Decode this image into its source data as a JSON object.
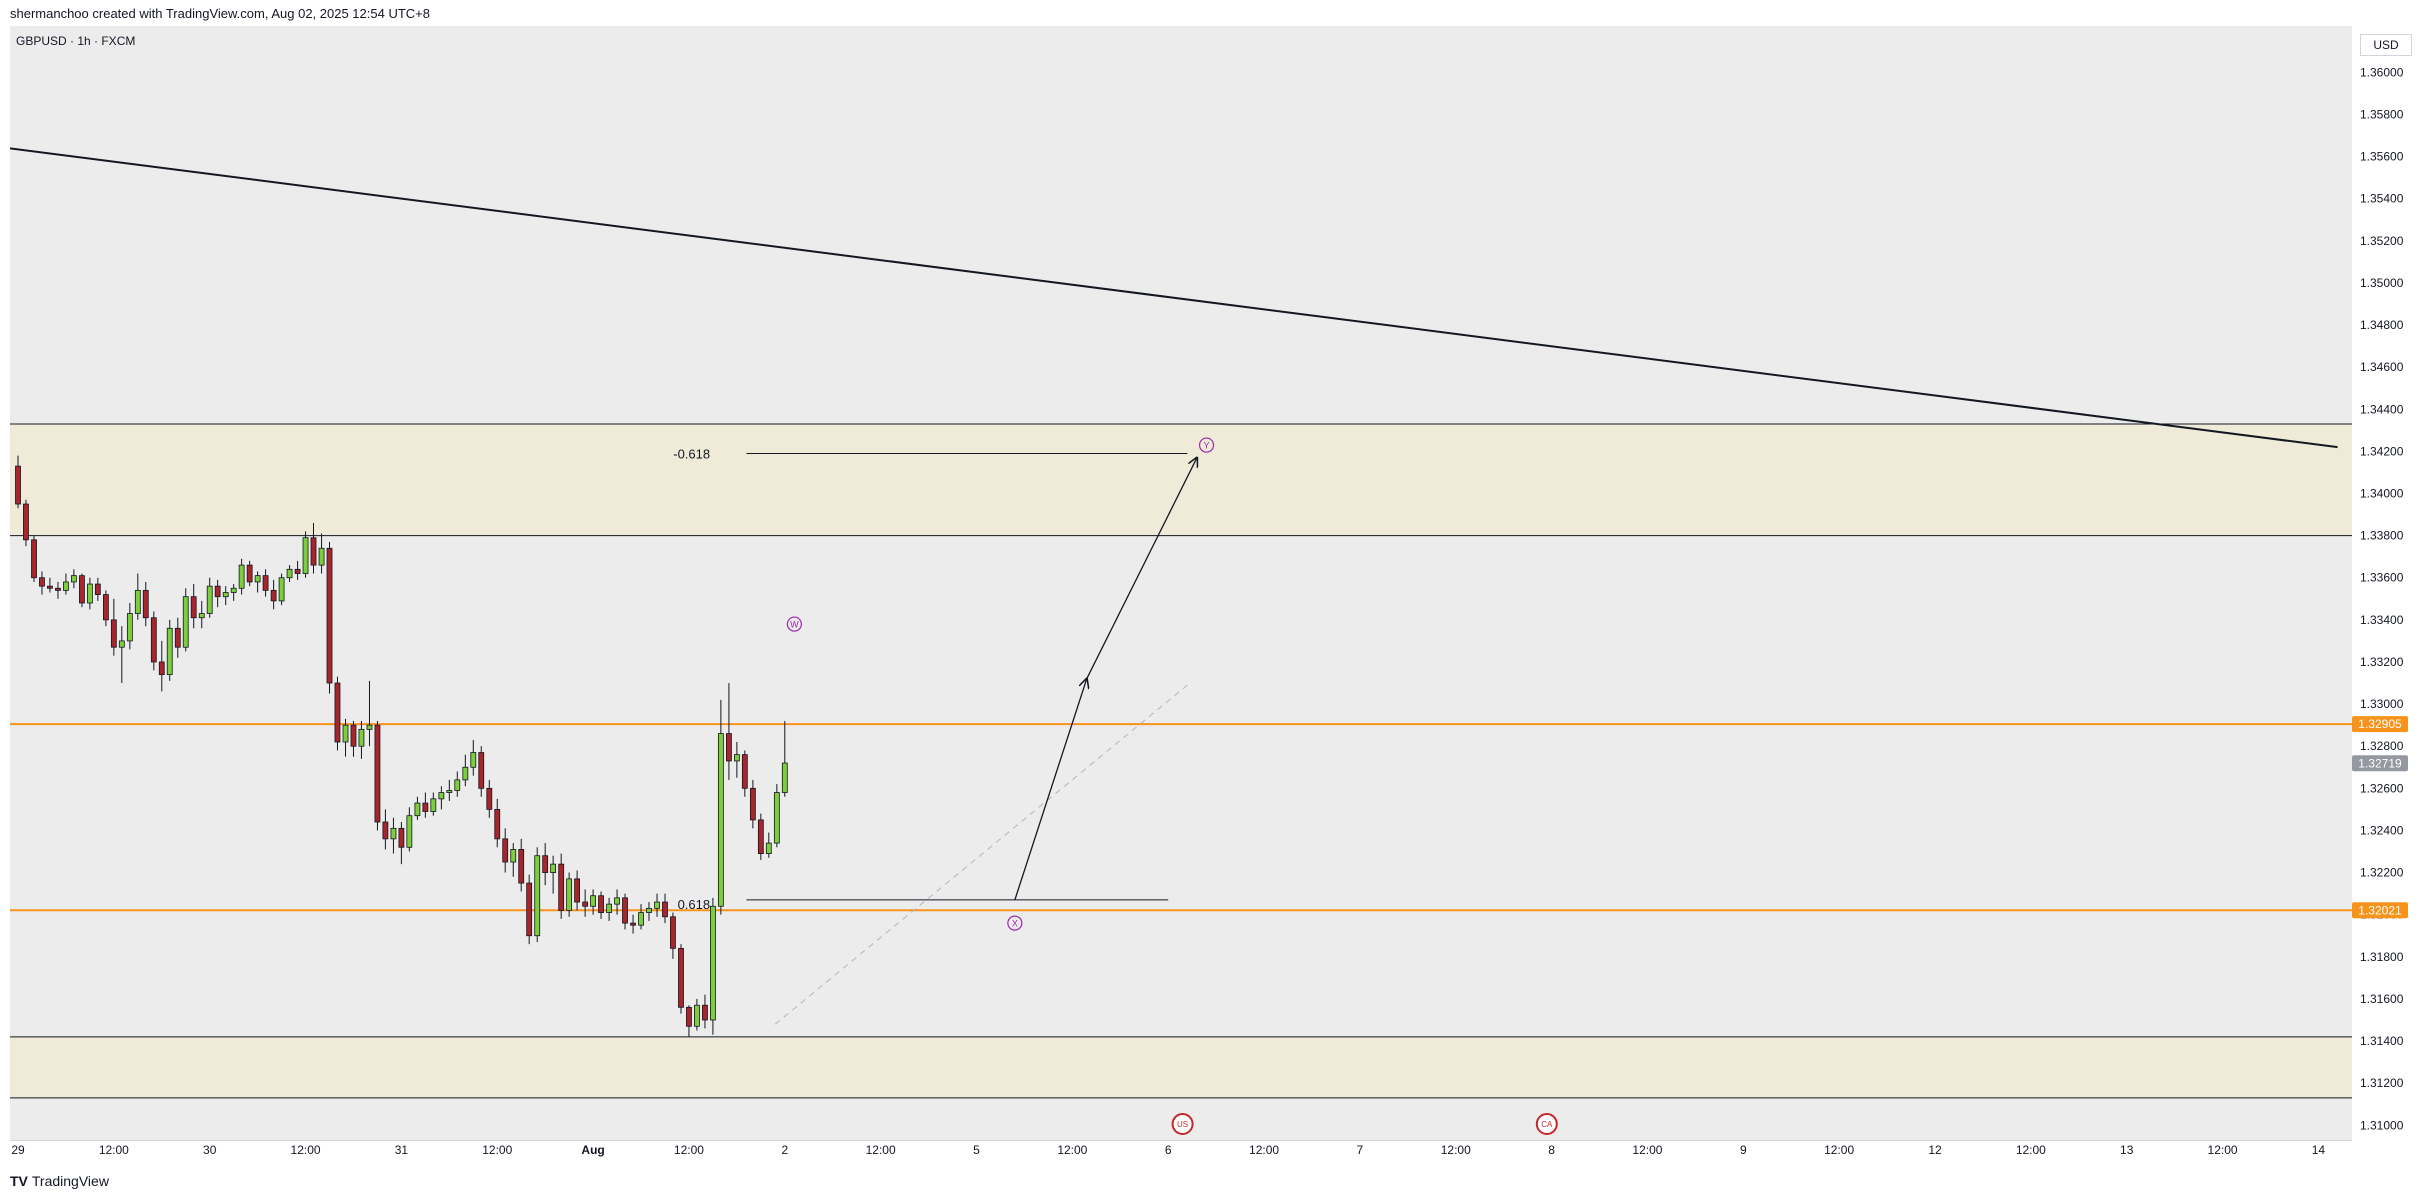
{
  "header": {
    "text": "shermanchoo created with TradingView.com, Aug 02, 2025 12:54 UTC+8"
  },
  "symbol": "GBPUSD · 1h · FXCM",
  "currency": "USD",
  "brand": {
    "logo": "TV",
    "name": "TradingView"
  },
  "colors": {
    "plot_bg": "#ececec",
    "zone": "#efebd8",
    "up": "#7ccf3a",
    "down": "#a8252b",
    "orange": "#f7931a",
    "purple": "#9c27b0",
    "current_price_bg": "#9598a1"
  },
  "chart_data": {
    "type": "candlestick",
    "title": "",
    "xlabel": "",
    "ylabel": "",
    "ylim": [
      1.3093,
      1.3622
    ],
    "price_ticks": [
      "1.36000",
      "1.35800",
      "1.35600",
      "1.35400",
      "1.35200",
      "1.35000",
      "1.34800",
      "1.34600",
      "1.34400",
      "1.34200",
      "1.34000",
      "1.33800",
      "1.33600",
      "1.33400",
      "1.33200",
      "1.33000",
      "1.32800",
      "1.32600",
      "1.32400",
      "1.32200",
      "1.32000",
      "1.31800",
      "1.31600",
      "1.31400",
      "1.31200",
      "1.31000"
    ],
    "time_ticks": [
      "29",
      "12:00",
      "30",
      "12:00",
      "31",
      "12:00",
      "Aug",
      "12:00",
      "2",
      "12:00",
      "5",
      "12:00",
      "6",
      "12:00",
      "7",
      "12:00",
      "8",
      "12:00",
      "9",
      "12:00",
      "12",
      "12:00",
      "13",
      "12:00",
      "14"
    ],
    "price_labels": [
      {
        "value": "1.32905",
        "price": 1.32905,
        "kind": "orange"
      },
      {
        "value": "1.32719",
        "price": 1.32719,
        "kind": "current"
      },
      {
        "value": "1.32021",
        "price": 1.32021,
        "kind": "orange"
      }
    ],
    "zones": [
      {
        "top": 1.3433,
        "bottom": 1.338
      },
      {
        "top": 1.3142,
        "bottom": 1.3113
      }
    ],
    "horizontal_levels": [
      1.32905,
      1.32021
    ],
    "trendline": {
      "from": {
        "t": -0.1,
        "p": 1.3564
      },
      "to": {
        "t": 24.2,
        "p": 1.3422
      }
    },
    "fib_labels": [
      {
        "text": "-0.618",
        "t": 7.2,
        "p": 1.3419
      },
      {
        "text": "0.618",
        "t": 7.2,
        "p": 1.3205
      }
    ],
    "fib_lines": [
      {
        "t0": 7.6,
        "t1": 12.2,
        "p": 1.3419
      },
      {
        "t0": 7.6,
        "t1": 12.0,
        "p": 1.3207
      }
    ],
    "projection_arrows": [
      {
        "from": {
          "t": 10.4,
          "p": 1.3207
        },
        "to": {
          "t": 11.15,
          "p": 1.3312
        }
      },
      {
        "from": {
          "t": 11.15,
          "p": 1.3312
        },
        "to": {
          "t": 12.3,
          "p": 1.3417
        }
      }
    ],
    "dashed_line": {
      "from": {
        "t": 7.9,
        "p": 1.3148
      },
      "to": {
        "t": 12.2,
        "p": 1.3309
      }
    },
    "wave_labels": [
      {
        "text": "W",
        "t": 8.1,
        "p": 1.3338
      },
      {
        "text": "X",
        "t": 10.4,
        "p": 1.3196
      },
      {
        "text": "Y",
        "t": 12.4,
        "p": 1.3423
      }
    ],
    "event_markers": [
      {
        "text": "US",
        "t": 12.15
      },
      {
        "text": "CA",
        "t": 15.95
      }
    ],
    "candles": [
      {
        "t": 0.0,
        "o": 1.3413,
        "h": 1.3418,
        "l": 1.3393,
        "c": 1.3395
      },
      {
        "t": 0.083,
        "o": 1.3395,
        "h": 1.3397,
        "l": 1.3375,
        "c": 1.3378
      },
      {
        "t": 0.167,
        "o": 1.3378,
        "h": 1.338,
        "l": 1.3358,
        "c": 1.336
      },
      {
        "t": 0.25,
        "o": 1.336,
        "h": 1.3363,
        "l": 1.3352,
        "c": 1.3356
      },
      {
        "t": 0.333,
        "o": 1.3356,
        "h": 1.336,
        "l": 1.3353,
        "c": 1.3355
      },
      {
        "t": 0.417,
        "o": 1.3355,
        "h": 1.3358,
        "l": 1.335,
        "c": 1.3354
      },
      {
        "t": 0.5,
        "o": 1.3354,
        "h": 1.3362,
        "l": 1.3352,
        "c": 1.3358
      },
      {
        "t": 0.583,
        "o": 1.3358,
        "h": 1.3364,
        "l": 1.3355,
        "c": 1.3361
      },
      {
        "t": 0.667,
        "o": 1.3361,
        "h": 1.3362,
        "l": 1.3346,
        "c": 1.3348
      },
      {
        "t": 0.75,
        "o": 1.3348,
        "h": 1.336,
        "l": 1.3345,
        "c": 1.3357
      },
      {
        "t": 0.833,
        "o": 1.3357,
        "h": 1.336,
        "l": 1.3349,
        "c": 1.3352
      },
      {
        "t": 0.917,
        "o": 1.3352,
        "h": 1.3354,
        "l": 1.3337,
        "c": 1.334
      },
      {
        "t": 1.0,
        "o": 1.334,
        "h": 1.335,
        "l": 1.3323,
        "c": 1.3327
      },
      {
        "t": 1.083,
        "o": 1.3327,
        "h": 1.3337,
        "l": 1.331,
        "c": 1.333
      },
      {
        "t": 1.167,
        "o": 1.333,
        "h": 1.3348,
        "l": 1.3326,
        "c": 1.3343
      },
      {
        "t": 1.25,
        "o": 1.3343,
        "h": 1.3362,
        "l": 1.334,
        "c": 1.3354
      },
      {
        "t": 1.333,
        "o": 1.3354,
        "h": 1.3358,
        "l": 1.3337,
        "c": 1.3341
      },
      {
        "t": 1.417,
        "o": 1.3341,
        "h": 1.3344,
        "l": 1.3316,
        "c": 1.332
      },
      {
        "t": 1.5,
        "o": 1.332,
        "h": 1.333,
        "l": 1.3306,
        "c": 1.3314
      },
      {
        "t": 1.583,
        "o": 1.3314,
        "h": 1.334,
        "l": 1.3311,
        "c": 1.3336
      },
      {
        "t": 1.667,
        "o": 1.3336,
        "h": 1.3341,
        "l": 1.3322,
        "c": 1.3327
      },
      {
        "t": 1.75,
        "o": 1.3327,
        "h": 1.3355,
        "l": 1.3325,
        "c": 1.3351
      },
      {
        "t": 1.833,
        "o": 1.3351,
        "h": 1.3357,
        "l": 1.3336,
        "c": 1.3341
      },
      {
        "t": 1.917,
        "o": 1.3341,
        "h": 1.3349,
        "l": 1.3336,
        "c": 1.3343
      },
      {
        "t": 2.0,
        "o": 1.3343,
        "h": 1.336,
        "l": 1.3341,
        "c": 1.3356
      },
      {
        "t": 2.083,
        "o": 1.3356,
        "h": 1.3359,
        "l": 1.3346,
        "c": 1.3351
      },
      {
        "t": 2.167,
        "o": 1.3351,
        "h": 1.3356,
        "l": 1.3347,
        "c": 1.3353
      },
      {
        "t": 2.25,
        "o": 1.3353,
        "h": 1.3357,
        "l": 1.3349,
        "c": 1.3355
      },
      {
        "t": 2.333,
        "o": 1.3355,
        "h": 1.3369,
        "l": 1.3352,
        "c": 1.3366
      },
      {
        "t": 2.417,
        "o": 1.3366,
        "h": 1.3368,
        "l": 1.3356,
        "c": 1.3358
      },
      {
        "t": 2.5,
        "o": 1.3358,
        "h": 1.3363,
        "l": 1.3353,
        "c": 1.3361
      },
      {
        "t": 2.583,
        "o": 1.3361,
        "h": 1.3364,
        "l": 1.3351,
        "c": 1.3354
      },
      {
        "t": 2.667,
        "o": 1.3354,
        "h": 1.3359,
        "l": 1.3345,
        "c": 1.3349
      },
      {
        "t": 2.75,
        "o": 1.3349,
        "h": 1.3362,
        "l": 1.3347,
        "c": 1.336
      },
      {
        "t": 2.833,
        "o": 1.336,
        "h": 1.3366,
        "l": 1.3358,
        "c": 1.3364
      },
      {
        "t": 2.917,
        "o": 1.3364,
        "h": 1.3368,
        "l": 1.3359,
        "c": 1.3362
      },
      {
        "t": 3.0,
        "o": 1.3362,
        "h": 1.3382,
        "l": 1.336,
        "c": 1.3379
      },
      {
        "t": 3.083,
        "o": 1.3379,
        "h": 1.3386,
        "l": 1.3362,
        "c": 1.3366
      },
      {
        "t": 3.167,
        "o": 1.3366,
        "h": 1.3381,
        "l": 1.3362,
        "c": 1.3374
      },
      {
        "t": 3.25,
        "o": 1.3374,
        "h": 1.3377,
        "l": 1.3305,
        "c": 1.331
      },
      {
        "t": 3.333,
        "o": 1.331,
        "h": 1.3313,
        "l": 1.3278,
        "c": 1.3282
      },
      {
        "t": 3.417,
        "o": 1.3282,
        "h": 1.3293,
        "l": 1.3275,
        "c": 1.329
      },
      {
        "t": 3.5,
        "o": 1.329,
        "h": 1.3292,
        "l": 1.3275,
        "c": 1.328
      },
      {
        "t": 3.583,
        "o": 1.328,
        "h": 1.3292,
        "l": 1.3274,
        "c": 1.3288
      },
      {
        "t": 3.667,
        "o": 1.3288,
        "h": 1.3311,
        "l": 1.328,
        "c": 1.329
      },
      {
        "t": 3.75,
        "o": 1.329,
        "h": 1.3292,
        "l": 1.324,
        "c": 1.3244
      },
      {
        "t": 3.833,
        "o": 1.3244,
        "h": 1.325,
        "l": 1.3231,
        "c": 1.3236
      },
      {
        "t": 3.917,
        "o": 1.3236,
        "h": 1.3246,
        "l": 1.3229,
        "c": 1.3241
      },
      {
        "t": 4.0,
        "o": 1.3241,
        "h": 1.3244,
        "l": 1.3224,
        "c": 1.3232
      },
      {
        "t": 4.083,
        "o": 1.3232,
        "h": 1.3251,
        "l": 1.323,
        "c": 1.3247
      },
      {
        "t": 4.167,
        "o": 1.3247,
        "h": 1.3256,
        "l": 1.3245,
        "c": 1.3253
      },
      {
        "t": 4.25,
        "o": 1.3253,
        "h": 1.3258,
        "l": 1.3246,
        "c": 1.3249
      },
      {
        "t": 4.333,
        "o": 1.3249,
        "h": 1.3258,
        "l": 1.3247,
        "c": 1.3255
      },
      {
        "t": 4.417,
        "o": 1.3255,
        "h": 1.3261,
        "l": 1.325,
        "c": 1.3258
      },
      {
        "t": 4.5,
        "o": 1.3258,
        "h": 1.3264,
        "l": 1.3254,
        "c": 1.3259
      },
      {
        "t": 4.583,
        "o": 1.3259,
        "h": 1.3268,
        "l": 1.3256,
        "c": 1.3264
      },
      {
        "t": 4.667,
        "o": 1.3264,
        "h": 1.3276,
        "l": 1.3261,
        "c": 1.327
      },
      {
        "t": 4.75,
        "o": 1.327,
        "h": 1.3283,
        "l": 1.3266,
        "c": 1.3277
      },
      {
        "t": 4.833,
        "o": 1.3277,
        "h": 1.328,
        "l": 1.3256,
        "c": 1.326
      },
      {
        "t": 4.917,
        "o": 1.326,
        "h": 1.3264,
        "l": 1.3246,
        "c": 1.325
      },
      {
        "t": 5.0,
        "o": 1.325,
        "h": 1.3255,
        "l": 1.3232,
        "c": 1.3236
      },
      {
        "t": 5.083,
        "o": 1.3236,
        "h": 1.3241,
        "l": 1.322,
        "c": 1.3225
      },
      {
        "t": 5.167,
        "o": 1.3225,
        "h": 1.3234,
        "l": 1.3218,
        "c": 1.3231
      },
      {
        "t": 5.25,
        "o": 1.3231,
        "h": 1.3236,
        "l": 1.3211,
        "c": 1.3215
      },
      {
        "t": 5.333,
        "o": 1.3215,
        "h": 1.3219,
        "l": 1.3186,
        "c": 1.319
      },
      {
        "t": 5.417,
        "o": 1.319,
        "h": 1.3232,
        "l": 1.3187,
        "c": 1.3228
      },
      {
        "t": 5.5,
        "o": 1.3228,
        "h": 1.3234,
        "l": 1.3214,
        "c": 1.322
      },
      {
        "t": 5.583,
        "o": 1.322,
        "h": 1.3228,
        "l": 1.321,
        "c": 1.3224
      },
      {
        "t": 5.667,
        "o": 1.3224,
        "h": 1.3229,
        "l": 1.3198,
        "c": 1.3202
      },
      {
        "t": 5.75,
        "o": 1.3202,
        "h": 1.322,
        "l": 1.3199,
        "c": 1.3217
      },
      {
        "t": 5.833,
        "o": 1.3217,
        "h": 1.3221,
        "l": 1.3202,
        "c": 1.3206
      },
      {
        "t": 5.917,
        "o": 1.3206,
        "h": 1.3212,
        "l": 1.3199,
        "c": 1.3204
      },
      {
        "t": 6.0,
        "o": 1.3204,
        "h": 1.3212,
        "l": 1.32,
        "c": 1.3209
      },
      {
        "t": 6.083,
        "o": 1.3209,
        "h": 1.3211,
        "l": 1.3198,
        "c": 1.3201
      },
      {
        "t": 6.167,
        "o": 1.3201,
        "h": 1.3208,
        "l": 1.3197,
        "c": 1.3205
      },
      {
        "t": 6.25,
        "o": 1.3205,
        "h": 1.3212,
        "l": 1.32,
        "c": 1.3208
      },
      {
        "t": 6.333,
        "o": 1.3208,
        "h": 1.321,
        "l": 1.3193,
        "c": 1.3196
      },
      {
        "t": 6.417,
        "o": 1.3196,
        "h": 1.32,
        "l": 1.3191,
        "c": 1.3195
      },
      {
        "t": 6.5,
        "o": 1.3195,
        "h": 1.3205,
        "l": 1.3193,
        "c": 1.3201
      },
      {
        "t": 6.583,
        "o": 1.3201,
        "h": 1.3206,
        "l": 1.3197,
        "c": 1.3203
      },
      {
        "t": 6.667,
        "o": 1.3203,
        "h": 1.321,
        "l": 1.3199,
        "c": 1.3206
      },
      {
        "t": 6.75,
        "o": 1.3206,
        "h": 1.321,
        "l": 1.3196,
        "c": 1.3199
      },
      {
        "t": 6.833,
        "o": 1.3199,
        "h": 1.3201,
        "l": 1.3179,
        "c": 1.3184
      },
      {
        "t": 6.917,
        "o": 1.3184,
        "h": 1.3186,
        "l": 1.3153,
        "c": 1.3156
      },
      {
        "t": 7.0,
        "o": 1.3156,
        "h": 1.3157,
        "l": 1.3142,
        "c": 1.3147
      },
      {
        "t": 7.083,
        "o": 1.3147,
        "h": 1.316,
        "l": 1.3145,
        "c": 1.3157
      },
      {
        "t": 7.167,
        "o": 1.3157,
        "h": 1.3162,
        "l": 1.3146,
        "c": 1.315
      },
      {
        "t": 7.25,
        "o": 1.315,
        "h": 1.3208,
        "l": 1.3143,
        "c": 1.3204
      },
      {
        "t": 7.333,
        "o": 1.3204,
        "h": 1.3302,
        "l": 1.32,
        "c": 1.3286
      },
      {
        "t": 7.417,
        "o": 1.3286,
        "h": 1.331,
        "l": 1.3264,
        "c": 1.3273
      },
      {
        "t": 7.5,
        "o": 1.3273,
        "h": 1.3282,
        "l": 1.3265,
        "c": 1.3276
      },
      {
        "t": 7.583,
        "o": 1.3276,
        "h": 1.3278,
        "l": 1.3256,
        "c": 1.326
      },
      {
        "t": 7.667,
        "o": 1.326,
        "h": 1.3264,
        "l": 1.3241,
        "c": 1.3245
      },
      {
        "t": 7.75,
        "o": 1.3245,
        "h": 1.3248,
        "l": 1.3226,
        "c": 1.3229
      },
      {
        "t": 7.833,
        "o": 1.3229,
        "h": 1.3239,
        "l": 1.3227,
        "c": 1.3234
      },
      {
        "t": 7.917,
        "o": 1.3234,
        "h": 1.3262,
        "l": 1.3232,
        "c": 1.3258
      },
      {
        "t": 8.0,
        "o": 1.3258,
        "h": 1.3292,
        "l": 1.3256,
        "c": 1.3272
      }
    ]
  }
}
